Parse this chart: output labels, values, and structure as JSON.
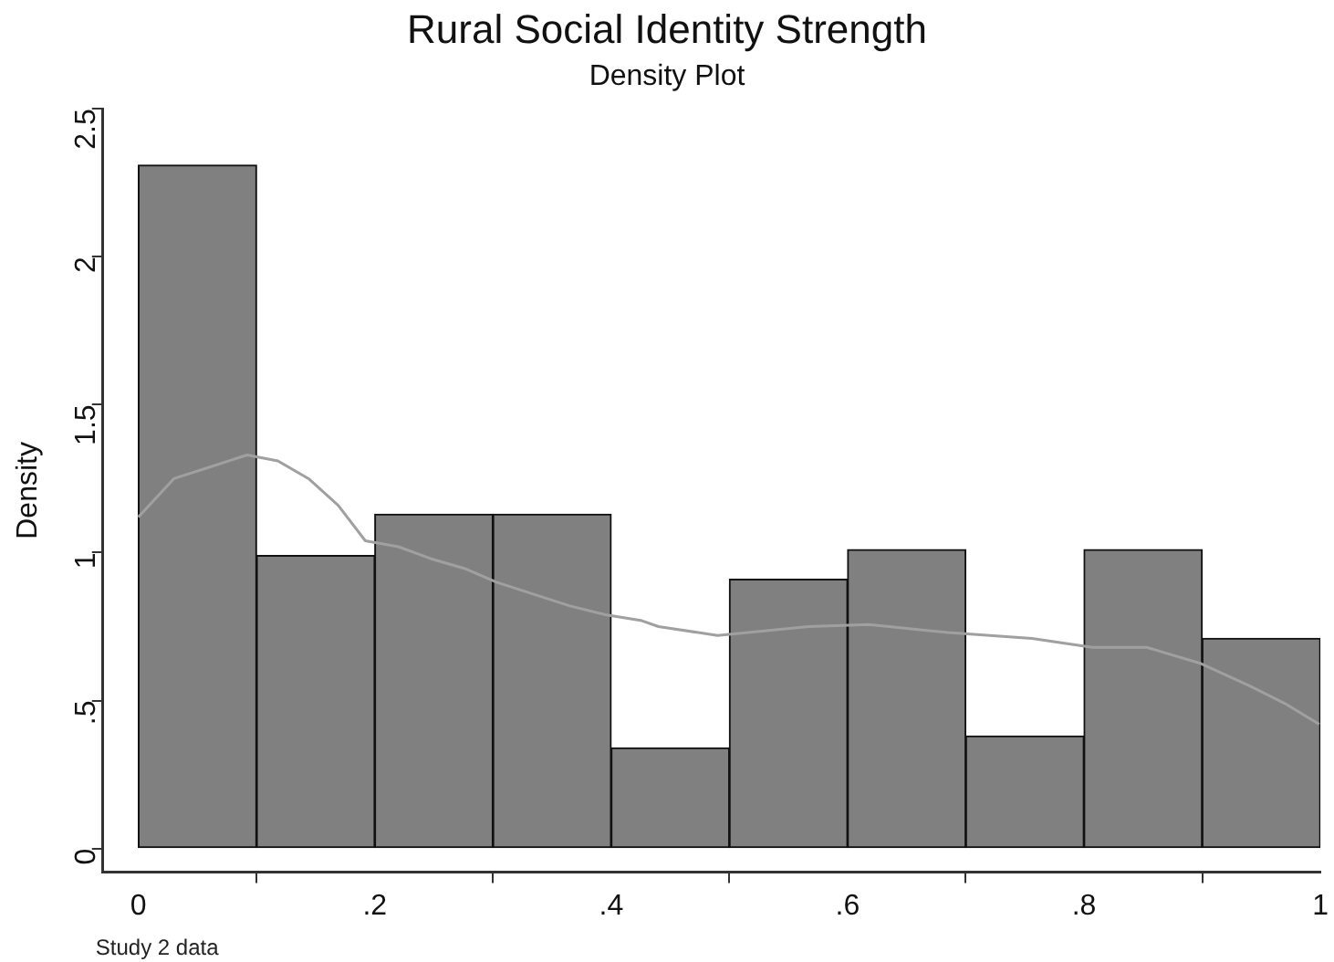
{
  "chart_data": {
    "type": "histogram",
    "title": "Rural Social Identity Strength",
    "subtitle": "Density Plot",
    "ylabel": "Density",
    "annotations": [
      "Study 2 data"
    ],
    "series": [
      {
        "type": "histogram",
        "color": "#808080",
        "bins": [
          0,
          0.1,
          0.2,
          0.3,
          0.4,
          0.5,
          0.6,
          0.7,
          0.8,
          0.9,
          1
        ],
        "values": [
          2.31,
          0.99,
          1.13,
          1.13,
          0.34,
          0.91,
          1.01,
          0.38,
          1.01,
          0.71
        ]
      },
      {
        "type": "line",
        "color": "#a0a0a0",
        "x": [
          0,
          0.03,
          0.061,
          0.092,
          0.118,
          0.144,
          0.169,
          0.192,
          0.22,
          0.247,
          0.277,
          0.303,
          0.334,
          0.365,
          0.395,
          0.426,
          0.44,
          0.49,
          0.567,
          0.618,
          0.685,
          0.756,
          0.807,
          0.853,
          0.899,
          0.94,
          0.97,
          0.999
        ],
        "values": [
          1.12,
          1.25,
          1.29,
          1.33,
          1.31,
          1.25,
          1.16,
          1.04,
          1.02,
          0.98,
          0.945,
          0.9,
          0.86,
          0.82,
          0.79,
          0.77,
          0.75,
          0.72,
          0.75,
          0.757,
          0.73,
          0.71,
          0.68,
          0.68,
          0.625,
          0.55,
          0.49,
          0.42
        ]
      }
    ],
    "xlim": [
      -0.03,
      1
    ],
    "ylim": [
      -0.08,
      2.5
    ],
    "xticks": [
      0,
      {
        "value": 0.2,
        "label": ".2"
      },
      {
        "value": 0.4,
        "label": ".4"
      },
      {
        "value": 0.6,
        "label": ".6"
      },
      {
        "value": 0.8,
        "label": ".8"
      },
      1
    ],
    "yticks": [
      0,
      {
        "value": 0.5,
        "label": ".5"
      },
      1,
      1.5,
      2,
      2.5
    ],
    "grid": false,
    "legend": false,
    "marker": "none",
    "line_style": "solid"
  }
}
